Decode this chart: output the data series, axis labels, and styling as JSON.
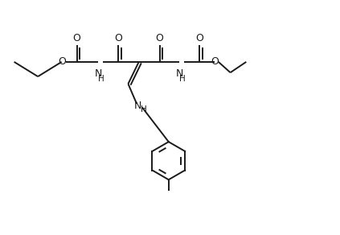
{
  "bg_color": "#ffffff",
  "line_color": "#1a1a1a",
  "lw": 1.4,
  "figsize": [
    4.23,
    2.92
  ],
  "dpi": 100,
  "xlim": [
    -0.5,
    10.5
  ],
  "ylim": [
    -4.5,
    2.5
  ]
}
